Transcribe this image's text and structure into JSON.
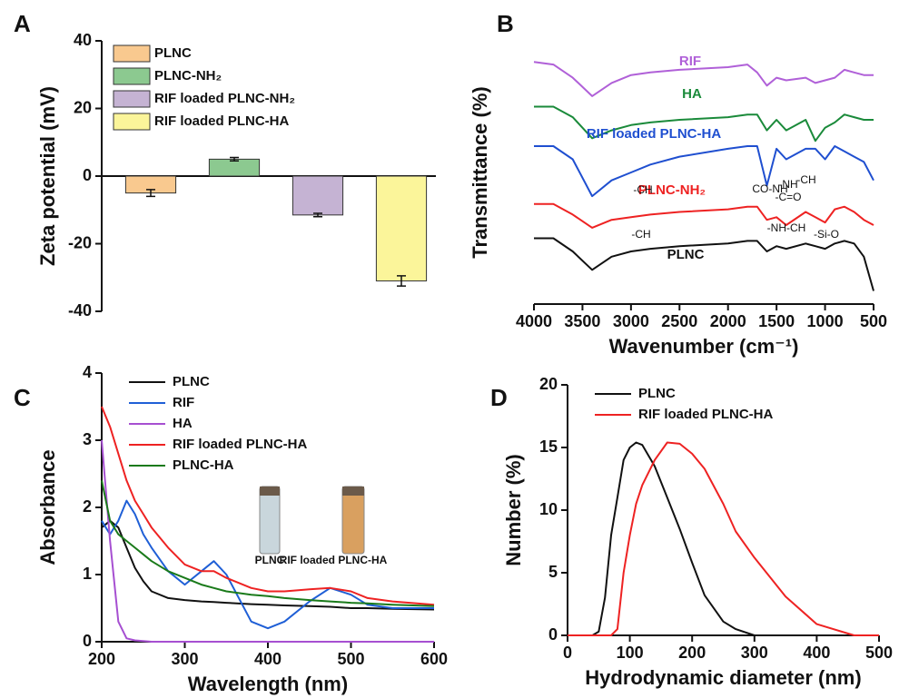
{
  "chart_data": [
    {
      "type": "bar",
      "panel_label": "A",
      "ylabel": "Zeta potential (mV)",
      "categories": [
        "PLNC",
        "PLNC-NH₂",
        "RIF loaded PLNC-NH₂",
        "RIF loaded PLNC-HA"
      ],
      "values": [
        -5,
        5,
        -11.5,
        -31
      ],
      "errors": [
        1,
        0.5,
        0.5,
        1.5
      ],
      "colors": [
        "#f9c98f",
        "#8cc990",
        "#c5b3d3",
        "#fbf59a"
      ],
      "ylim": [
        -40,
        40
      ],
      "yticks": [
        -40,
        -20,
        0,
        20,
        40
      ],
      "legend": true
    },
    {
      "type": "line",
      "panel_label": "B",
      "xlabel": "Wavenumber (cm⁻¹)",
      "ylabel": "Transmittance (%)",
      "x": [
        4000,
        3800,
        3600,
        3400,
        3200,
        3000,
        2800,
        2500,
        2000,
        1800,
        1700,
        1600,
        1500,
        1400,
        1200,
        1100,
        1000,
        900,
        800,
        700,
        600,
        500
      ],
      "series": [
        {
          "name": "RIF",
          "color": "#b060d8",
          "values": [
            92,
            91,
            86,
            79,
            84,
            87,
            88,
            89,
            90,
            91,
            88,
            83,
            86,
            85,
            86,
            84,
            85,
            86,
            89,
            88,
            87,
            87
          ]
        },
        {
          "name": "HA",
          "color": "#1a8a3a",
          "values": [
            75,
            75,
            71,
            63,
            66,
            68,
            69,
            70,
            71,
            72,
            72,
            66,
            70,
            66,
            70,
            62,
            67,
            69,
            72,
            71,
            70,
            70
          ]
        },
        {
          "name": "RIF loaded PLNC-HA",
          "color": "#1f4fd0",
          "values": [
            60,
            60,
            55,
            41,
            47,
            50,
            53,
            56,
            59,
            60,
            60,
            45,
            59,
            55,
            59,
            59,
            55,
            60,
            58,
            56,
            54,
            47
          ]
        },
        {
          "name": "PLNC-NH₂",
          "color": "#ee2222",
          "values": [
            38,
            38,
            34,
            29,
            32,
            33,
            34,
            35,
            36,
            37,
            37,
            32,
            33,
            30,
            35,
            33,
            31,
            36,
            37,
            35,
            32,
            30
          ]
        },
        {
          "name": "PLNC",
          "color": "#111111",
          "values": [
            25,
            25,
            20,
            13,
            18,
            20,
            21,
            22,
            23,
            24,
            24,
            20,
            22,
            21,
            23,
            22,
            21,
            23,
            24,
            23,
            18,
            5
          ]
        }
      ],
      "annotations": [
        "-CH",
        "CO-NH",
        "-C=O",
        "-NH",
        "-CH",
        "-CH",
        "-NH-CH",
        "-Si-O"
      ],
      "xlim": [
        4000,
        500
      ],
      "xticks": [
        4000,
        3500,
        3000,
        2500,
        2000,
        1500,
        1000,
        500
      ],
      "ylim": [
        0,
        100
      ],
      "legend": false
    },
    {
      "type": "line",
      "panel_label": "C",
      "xlabel": "Wavelength (nm)",
      "ylabel": "Absorbance",
      "x": [
        200,
        210,
        220,
        230,
        240,
        250,
        260,
        280,
        300,
        320,
        335,
        350,
        380,
        400,
        420,
        450,
        475,
        500,
        520,
        550,
        600
      ],
      "series": [
        {
          "name": "PLNC",
          "color": "#111111",
          "values": [
            1.7,
            1.8,
            1.7,
            1.4,
            1.1,
            0.9,
            0.75,
            0.65,
            0.62,
            0.6,
            0.59,
            0.58,
            0.56,
            0.55,
            0.54,
            0.53,
            0.52,
            0.5,
            0.5,
            0.49,
            0.48
          ]
        },
        {
          "name": "RIF",
          "color": "#1f5fd6",
          "values": [
            1.8,
            1.6,
            1.8,
            2.1,
            1.9,
            1.6,
            1.4,
            1.05,
            0.85,
            1.05,
            1.2,
            1.0,
            0.3,
            0.2,
            0.3,
            0.6,
            0.8,
            0.7,
            0.55,
            0.5,
            0.5
          ]
        },
        {
          "name": "HA",
          "color": "#a64fd1",
          "values": [
            3.0,
            1.5,
            0.3,
            0.05,
            0.02,
            0.01,
            0,
            0,
            0,
            0,
            0,
            0,
            0,
            0,
            0,
            0,
            0,
            0,
            0,
            0,
            0
          ]
        },
        {
          "name": "RIF loaded PLNC-HA",
          "color": "#ee2222",
          "values": [
            3.5,
            3.2,
            2.8,
            2.4,
            2.1,
            1.9,
            1.7,
            1.4,
            1.15,
            1.05,
            1.05,
            0.95,
            0.8,
            0.75,
            0.75,
            0.78,
            0.8,
            0.75,
            0.65,
            0.6,
            0.55
          ]
        },
        {
          "name": "PLNC-HA",
          "color": "#1a7a1a",
          "values": [
            2.4,
            1.8,
            1.6,
            1.5,
            1.4,
            1.3,
            1.2,
            1.05,
            0.95,
            0.85,
            0.8,
            0.75,
            0.7,
            0.68,
            0.65,
            0.62,
            0.6,
            0.58,
            0.57,
            0.55,
            0.53
          ]
        }
      ],
      "annotations": [
        "PLNC",
        "RIF loaded PLNC-HA"
      ],
      "xlim": [
        200,
        600
      ],
      "xticks": [
        200,
        300,
        400,
        500,
        600
      ],
      "ylim": [
        0,
        4
      ],
      "yticks": [
        0,
        1,
        2,
        3,
        4
      ],
      "legend": true
    },
    {
      "type": "line",
      "panel_label": "D",
      "xlabel": "Hydrodynamic diameter (nm)",
      "ylabel": "Number (%)",
      "x": [
        0,
        40,
        50,
        60,
        70,
        80,
        90,
        100,
        110,
        120,
        140,
        160,
        180,
        200,
        220,
        250,
        270,
        300,
        350,
        400,
        460,
        500
      ],
      "series": [
        {
          "name": "PLNC",
          "color": "#111111",
          "values": [
            0,
            0,
            0.3,
            3,
            8,
            11,
            14,
            15,
            15.4,
            15.2,
            13.5,
            11,
            8.5,
            5.8,
            3.2,
            1.1,
            0.5,
            0,
            0,
            0,
            0,
            0
          ]
        },
        {
          "name": "RIF loaded PLNC-HA",
          "color": "#ee2222",
          "values": [
            0,
            0,
            0,
            0,
            0,
            0.5,
            5,
            8,
            10.5,
            12,
            14,
            15.4,
            15.3,
            14.5,
            13.3,
            10.5,
            8.3,
            6.2,
            3.1,
            0.9,
            0,
            0
          ]
        }
      ],
      "xlim": [
        0,
        500
      ],
      "xticks": [
        0,
        100,
        200,
        300,
        400,
        500
      ],
      "ylim": [
        0,
        20
      ],
      "yticks": [
        0,
        5,
        10,
        15,
        20
      ],
      "legend": true
    }
  ]
}
